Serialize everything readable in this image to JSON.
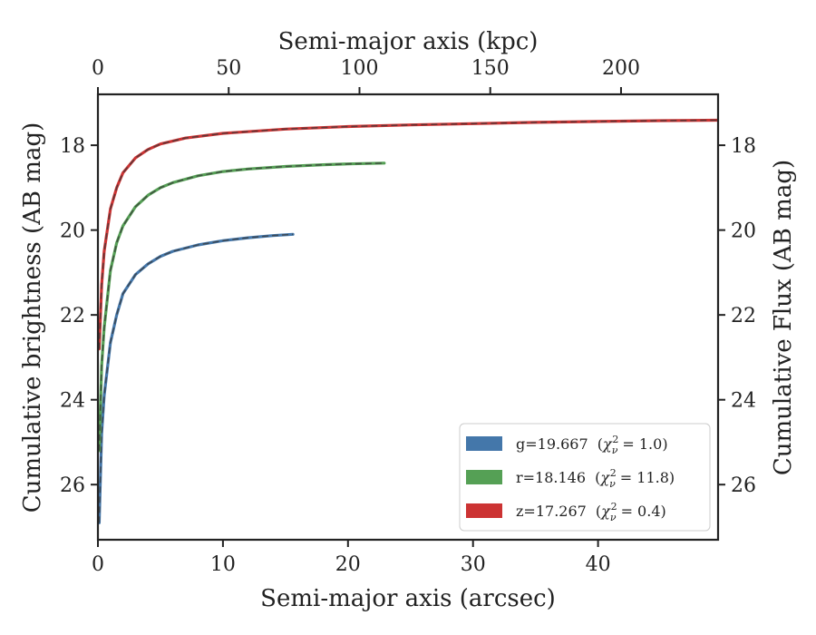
{
  "chart_data": {
    "type": "line",
    "xlabel": "Semi-major axis (arcsec)",
    "x2label": "Semi-major axis (kpc)",
    "ylabel": "Cumulative brightness (AB mag)",
    "y2label": "Cumulative Flux (AB mag)",
    "xlim": [
      0,
      49.6
    ],
    "x2lim": [
      0,
      237.1
    ],
    "ylim": [
      27.3,
      16.8
    ],
    "y_inverted": true,
    "x_ticks": [
      0,
      10,
      20,
      30,
      40
    ],
    "x2_ticks": [
      0,
      50,
      100,
      150,
      200
    ],
    "y_ticks": [
      18,
      20,
      22,
      24,
      26
    ],
    "legend_position": "lower-right",
    "series": [
      {
        "name": "g=19.667",
        "chi_label": "= 1.0)",
        "color": "#4477aa",
        "x": [
          0.1,
          0.3,
          0.5,
          1.0,
          1.5,
          2.0,
          3.0,
          4.0,
          5.0,
          6.0,
          8.0,
          10.0,
          12.0,
          14.0,
          15.6
        ],
        "y": [
          26.9,
          24.8,
          23.9,
          22.65,
          22.0,
          21.5,
          21.05,
          20.8,
          20.62,
          20.5,
          20.35,
          20.25,
          20.18,
          20.13,
          20.1
        ]
      },
      {
        "name": "r=18.146",
        "chi_label": "= 11.8)",
        "color": "#55a055",
        "x": [
          0.1,
          0.3,
          0.5,
          1.0,
          1.5,
          2.0,
          3.0,
          4.0,
          5.0,
          6.0,
          8.0,
          10.0,
          12.0,
          15.0,
          18.0,
          20.0,
          22.9
        ],
        "y": [
          25.2,
          23.2,
          22.3,
          20.95,
          20.3,
          19.9,
          19.45,
          19.18,
          19.0,
          18.88,
          18.72,
          18.62,
          18.56,
          18.5,
          18.46,
          18.44,
          18.42
        ]
      },
      {
        "name": "z=17.267",
        "chi_label": "= 0.4)",
        "color": "#cc3333",
        "x": [
          0.1,
          0.3,
          0.5,
          1.0,
          1.5,
          2.0,
          3.0,
          4.0,
          5.0,
          7.0,
          10.0,
          15.0,
          20.0,
          25.0,
          30.0,
          35.0,
          40.0,
          45.0,
          49.5
        ],
        "y": [
          22.8,
          21.3,
          20.5,
          19.5,
          19.0,
          18.65,
          18.3,
          18.1,
          17.97,
          17.83,
          17.72,
          17.62,
          17.56,
          17.52,
          17.49,
          17.46,
          17.44,
          17.42,
          17.41
        ]
      }
    ]
  }
}
